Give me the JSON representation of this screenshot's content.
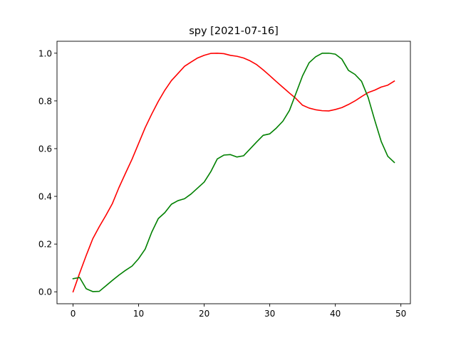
{
  "chart_data": {
    "type": "line",
    "title": "spy [2021-07-16]",
    "xlabel": "",
    "ylabel": "",
    "xlim": [
      -2.45,
      51.45
    ],
    "ylim": [
      -0.05,
      1.05
    ],
    "xticks": [
      0,
      10,
      20,
      30,
      40,
      50
    ],
    "yticks": [
      0.0,
      0.2,
      0.4,
      0.6,
      0.8,
      1.0
    ],
    "xtick_labels": [
      "0",
      "10",
      "20",
      "30",
      "40",
      "50"
    ],
    "ytick_labels": [
      "0.0",
      "0.2",
      "0.4",
      "0.6",
      "0.8",
      "1.0"
    ],
    "grid": false,
    "legend": "none",
    "series": [
      {
        "color": "#ff0000",
        "x": [
          0,
          1,
          2,
          3,
          4,
          5,
          6,
          7,
          8,
          9,
          10,
          11,
          12,
          13,
          14,
          15,
          16,
          17,
          18,
          19,
          20,
          21,
          22,
          23,
          24,
          25,
          26,
          27,
          28,
          29,
          30,
          31,
          32,
          33,
          34,
          35,
          36,
          37,
          38,
          39,
          40,
          41,
          42,
          43,
          44,
          45,
          46,
          47,
          48,
          49
        ],
        "values": [
          0.0,
          0.078,
          0.152,
          0.222,
          0.273,
          0.32,
          0.37,
          0.437,
          0.497,
          0.556,
          0.622,
          0.688,
          0.745,
          0.798,
          0.845,
          0.885,
          0.915,
          0.945,
          0.963,
          0.98,
          0.991,
          0.999,
          1.0,
          0.998,
          0.991,
          0.987,
          0.98,
          0.968,
          0.952,
          0.93,
          0.906,
          0.881,
          0.857,
          0.833,
          0.81,
          0.782,
          0.77,
          0.763,
          0.759,
          0.758,
          0.764,
          0.772,
          0.785,
          0.8,
          0.818,
          0.835,
          0.845,
          0.858,
          0.866,
          0.883
        ]
      },
      {
        "color": "#008000",
        "x": [
          0,
          1,
          2,
          3,
          4,
          5,
          6,
          7,
          8,
          9,
          10,
          11,
          12,
          13,
          14,
          15,
          16,
          17,
          18,
          19,
          20,
          21,
          22,
          23,
          24,
          25,
          26,
          27,
          28,
          29,
          30,
          31,
          32,
          33,
          34,
          35,
          36,
          37,
          38,
          39,
          40,
          41,
          42,
          43,
          44,
          45,
          46,
          47,
          48,
          49
        ],
        "values": [
          0.055,
          0.06,
          0.013,
          0.001,
          0.002,
          0.025,
          0.048,
          0.07,
          0.09,
          0.108,
          0.139,
          0.179,
          0.25,
          0.307,
          0.332,
          0.367,
          0.382,
          0.39,
          0.41,
          0.435,
          0.46,
          0.503,
          0.557,
          0.573,
          0.575,
          0.565,
          0.57,
          0.599,
          0.628,
          0.656,
          0.662,
          0.686,
          0.715,
          0.76,
          0.832,
          0.905,
          0.96,
          0.985,
          1.0,
          1.0,
          0.996,
          0.975,
          0.928,
          0.911,
          0.882,
          0.815,
          0.72,
          0.63,
          0.568,
          0.542
        ]
      }
    ]
  }
}
